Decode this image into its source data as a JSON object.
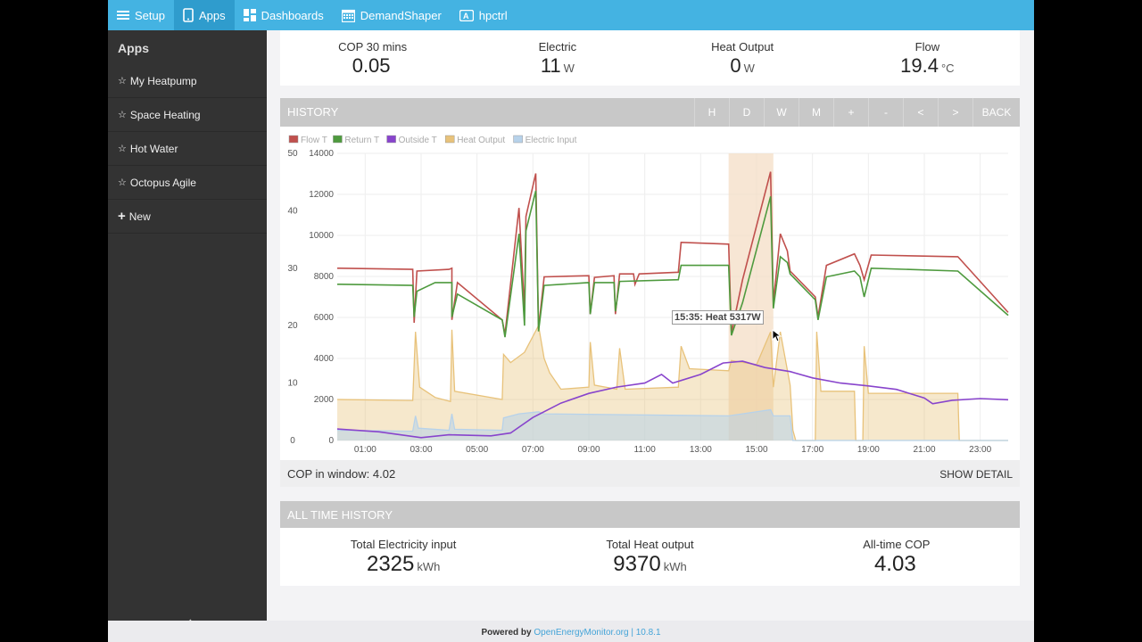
{
  "nav": {
    "items": [
      {
        "label": "Setup",
        "icon": "menu-icon",
        "active": false
      },
      {
        "label": "Apps",
        "icon": "tablet-icon",
        "active": true
      },
      {
        "label": "Dashboards",
        "icon": "dashboard-icon",
        "active": false
      },
      {
        "label": "DemandShaper",
        "icon": "calendar-icon",
        "active": false
      },
      {
        "label": "hpctrl",
        "icon": "app-icon",
        "active": false
      }
    ]
  },
  "sidebar": {
    "title": "Apps",
    "items": [
      {
        "label": "My Heatpump"
      },
      {
        "label": "Space Heating"
      },
      {
        "label": "Hot Water"
      },
      {
        "label": "Octopus Agile"
      }
    ],
    "new_label": "New"
  },
  "stats": [
    {
      "label": "COP 30 mins",
      "value": "0.05",
      "unit": ""
    },
    {
      "label": "Electric",
      "value": "11",
      "unit": "W"
    },
    {
      "label": "Heat Output",
      "value": "0",
      "unit": "W"
    },
    {
      "label": "Flow",
      "value": "19.4",
      "unit": "°C"
    }
  ],
  "history": {
    "title": "HISTORY",
    "buttons": [
      "H",
      "D",
      "W",
      "M",
      "+",
      "-",
      "<",
      ">",
      "BACK"
    ]
  },
  "tooltip": "15:35: Heat 5317W",
  "cop_window": {
    "label": "COP in window:",
    "value": "4.02",
    "show_detail": "SHOW DETAIL"
  },
  "alltime": {
    "title": "ALL TIME HISTORY",
    "stats": [
      {
        "label": "Total Electricity input",
        "value": "2325",
        "unit": "kWh"
      },
      {
        "label": "Total Heat output",
        "value": "9370",
        "unit": "kWh"
      },
      {
        "label": "All-time COP",
        "value": "4.03",
        "unit": ""
      }
    ]
  },
  "footer": {
    "powered": "Powered by",
    "link": "OpenEnergyMonitor.org",
    "version": "| 10.8.1"
  },
  "colors": {
    "flow": "#c0504d",
    "return": "#4e9a3e",
    "outside": "#8844cc",
    "heat": "#e8c27a",
    "electric": "#b7d2ea"
  },
  "chart_data": {
    "type": "line",
    "legend": [
      "Flow T",
      "Return T",
      "Outside T",
      "Heat Output",
      "Electric Input"
    ],
    "legend_position": "top-left",
    "x_ticks": [
      "01:00",
      "03:00",
      "05:00",
      "07:00",
      "09:00",
      "11:00",
      "13:00",
      "15:00",
      "17:00",
      "19:00",
      "21:00",
      "23:00"
    ],
    "y_left_ticks": [
      "0",
      "10",
      "20",
      "30",
      "40",
      "50"
    ],
    "y_right_ticks": [
      "0",
      "2000",
      "4000",
      "6000",
      "8000",
      "10000",
      "12000",
      "14000"
    ],
    "y_left_range": [
      0,
      50
    ],
    "y_right_range": [
      0,
      14000
    ],
    "x_range_hours": [
      0,
      24
    ],
    "highlight": [
      14.0,
      15.6
    ],
    "grid": true,
    "series": [
      {
        "name": "Flow T",
        "axis": "left",
        "points": [
          [
            0,
            30
          ],
          [
            2.7,
            29.8
          ],
          [
            2.75,
            20.5
          ],
          [
            2.85,
            29.5
          ],
          [
            4,
            29.8
          ],
          [
            4.1,
            30
          ],
          [
            4.1,
            21
          ],
          [
            4.3,
            27.5
          ],
          [
            5.9,
            21
          ],
          [
            6.0,
            18.5
          ],
          [
            6.5,
            40.5
          ],
          [
            6.7,
            22.5
          ],
          [
            6.75,
            39
          ],
          [
            7.1,
            46.5
          ],
          [
            7.2,
            19.5
          ],
          [
            7.4,
            28.5
          ],
          [
            9.0,
            28.7
          ],
          [
            9.05,
            22
          ],
          [
            9.2,
            28.4
          ],
          [
            9.9,
            28.7
          ],
          [
            9.95,
            22
          ],
          [
            10.1,
            29
          ],
          [
            10.6,
            29
          ],
          [
            10.65,
            27.2
          ],
          [
            10.8,
            29
          ],
          [
            12.2,
            29.3
          ],
          [
            12.3,
            34.5
          ],
          [
            14.0,
            34.2
          ],
          [
            14.1,
            18.7
          ],
          [
            14.5,
            28
          ],
          [
            15.5,
            46.8
          ],
          [
            15.6,
            24
          ],
          [
            15.85,
            36
          ],
          [
            16.1,
            33
          ],
          [
            16.2,
            29.5
          ],
          [
            17.1,
            25
          ],
          [
            17.2,
            21.5
          ],
          [
            17.5,
            30.5
          ],
          [
            18.5,
            32.5
          ],
          [
            18.7,
            30.5
          ],
          [
            18.85,
            28
          ],
          [
            19.1,
            32.3
          ],
          [
            22.2,
            32
          ],
          [
            24,
            22.3
          ]
        ]
      },
      {
        "name": "Return T",
        "axis": "left",
        "points": [
          [
            0,
            27.2
          ],
          [
            2.7,
            27
          ],
          [
            2.75,
            21.5
          ],
          [
            2.85,
            26
          ],
          [
            3.5,
            27.5
          ],
          [
            4.1,
            27.5
          ],
          [
            4.1,
            21.5
          ],
          [
            4.3,
            25.5
          ],
          [
            5.9,
            21
          ],
          [
            6.0,
            18
          ],
          [
            6.5,
            36
          ],
          [
            6.7,
            20
          ],
          [
            6.75,
            36.5
          ],
          [
            7.1,
            43.5
          ],
          [
            7.2,
            19
          ],
          [
            7.4,
            27
          ],
          [
            9.0,
            27.5
          ],
          [
            9.05,
            22
          ],
          [
            9.2,
            27.5
          ],
          [
            9.9,
            27.5
          ],
          [
            9.95,
            22.5
          ],
          [
            10.1,
            27.7
          ],
          [
            12.2,
            28
          ],
          [
            12.3,
            30.5
          ],
          [
            14.0,
            30.5
          ],
          [
            14.1,
            18.3
          ],
          [
            14.5,
            24
          ],
          [
            15.5,
            42.5
          ],
          [
            15.6,
            23
          ],
          [
            15.85,
            32
          ],
          [
            16.1,
            31
          ],
          [
            16.2,
            29
          ],
          [
            17.1,
            24.5
          ],
          [
            17.2,
            21
          ],
          [
            17.5,
            28.5
          ],
          [
            18.5,
            29.5
          ],
          [
            18.7,
            28.5
          ],
          [
            18.85,
            25
          ],
          [
            19.1,
            30
          ],
          [
            22.2,
            29.5
          ],
          [
            24,
            21.8
          ]
        ]
      },
      {
        "name": "Outside T",
        "axis": "left",
        "points": [
          [
            0,
            2
          ],
          [
            1.5,
            1.5
          ],
          [
            3,
            0.5
          ],
          [
            4,
            1
          ],
          [
            5.5,
            0.8
          ],
          [
            6.2,
            1.3
          ],
          [
            7,
            4
          ],
          [
            8,
            6.5
          ],
          [
            9,
            8.2
          ],
          [
            10,
            9.3
          ],
          [
            11,
            10
          ],
          [
            11.6,
            11.5
          ],
          [
            12,
            10
          ],
          [
            13,
            11.5
          ],
          [
            13.8,
            13.5
          ],
          [
            14.5,
            13.8
          ],
          [
            15.3,
            12.7
          ],
          [
            16.2,
            12
          ],
          [
            17,
            10.9
          ],
          [
            18,
            10
          ],
          [
            19,
            9.5
          ],
          [
            20,
            8.9
          ],
          [
            21,
            7.4
          ],
          [
            21.3,
            6.4
          ],
          [
            22,
            7
          ],
          [
            23,
            7.3
          ],
          [
            24,
            7.1
          ]
        ]
      },
      {
        "name": "Heat Output",
        "axis": "right",
        "points": [
          [
            0,
            2000
          ],
          [
            2.7,
            1950
          ],
          [
            2.8,
            5300
          ],
          [
            2.95,
            2600
          ],
          [
            3.5,
            2100
          ],
          [
            4.05,
            1900
          ],
          [
            4.1,
            5400
          ],
          [
            4.2,
            2400
          ],
          [
            5.9,
            2000
          ],
          [
            5.95,
            4200
          ],
          [
            6.2,
            3800
          ],
          [
            6.7,
            4300
          ],
          [
            7.2,
            5600
          ],
          [
            7.4,
            4000
          ],
          [
            7.6,
            3300
          ],
          [
            8.0,
            2500
          ],
          [
            9.0,
            2600
          ],
          [
            9.05,
            4800
          ],
          [
            9.2,
            2700
          ],
          [
            10,
            2500
          ],
          [
            10.1,
            4500
          ],
          [
            10.3,
            2500
          ],
          [
            12.2,
            2600
          ],
          [
            12.3,
            4600
          ],
          [
            12.6,
            3500
          ],
          [
            14.0,
            3400
          ],
          [
            14.1,
            3900
          ],
          [
            15.0,
            3700
          ],
          [
            15.5,
            5300
          ],
          [
            15.6,
            2600
          ],
          [
            15.85,
            5300
          ],
          [
            16.2,
            2700
          ],
          [
            16.3,
            500
          ],
          [
            16.4,
            0
          ],
          [
            17.1,
            0
          ],
          [
            17.15,
            5300
          ],
          [
            17.3,
            2400
          ],
          [
            18.5,
            2400
          ],
          [
            18.55,
            0
          ],
          [
            18.8,
            0
          ],
          [
            18.85,
            4600
          ],
          [
            19.0,
            2300
          ],
          [
            22.2,
            2300
          ],
          [
            22.25,
            0
          ],
          [
            24,
            0
          ]
        ]
      },
      {
        "name": "Electric Input",
        "axis": "right",
        "points": [
          [
            0,
            500
          ],
          [
            2.7,
            450
          ],
          [
            2.8,
            1200
          ],
          [
            2.9,
            600
          ],
          [
            4,
            500
          ],
          [
            4.1,
            1300
          ],
          [
            4.2,
            550
          ],
          [
            5.9,
            500
          ],
          [
            5.95,
            1100
          ],
          [
            6.5,
            1300
          ],
          [
            7.2,
            1400
          ],
          [
            7.4,
            1300
          ],
          [
            14.0,
            1200
          ],
          [
            15.5,
            1500
          ],
          [
            15.6,
            1200
          ],
          [
            16.2,
            1200
          ],
          [
            16.3,
            0
          ],
          [
            24,
            0
          ]
        ]
      }
    ]
  }
}
